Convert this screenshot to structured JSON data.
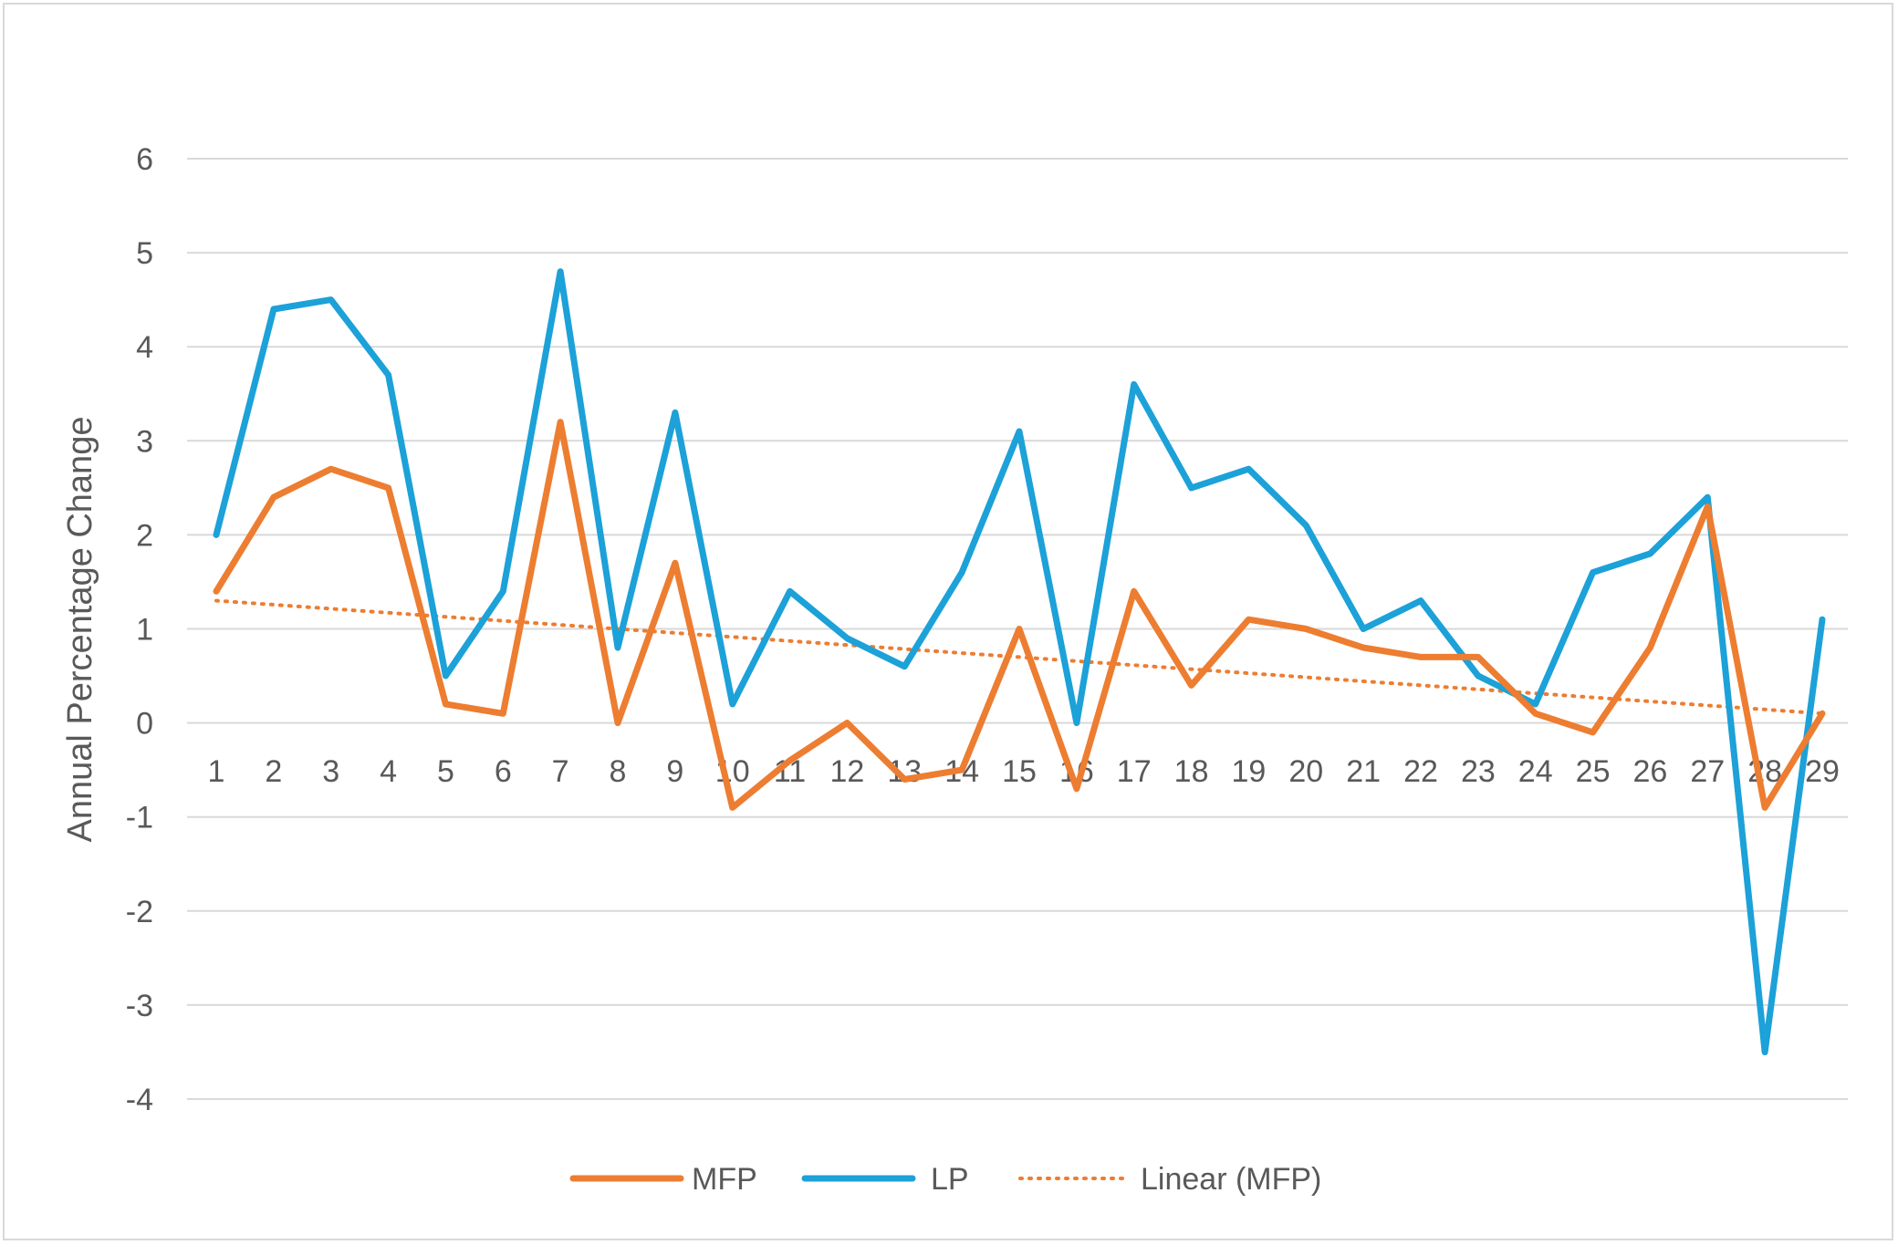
{
  "chart_data": {
    "type": "line",
    "title": "",
    "xlabel": "",
    "ylabel": "Annual Percentage Change",
    "ylim": [
      -4,
      6
    ],
    "yticks": [
      6,
      5,
      4,
      3,
      2,
      1,
      0,
      -1,
      -2,
      -3,
      -4
    ],
    "x": [
      1,
      2,
      3,
      4,
      5,
      6,
      7,
      8,
      9,
      10,
      11,
      12,
      13,
      14,
      15,
      16,
      17,
      18,
      19,
      20,
      21,
      22,
      23,
      24,
      25,
      26,
      27,
      28,
      29
    ],
    "grid": true,
    "legend_position": "bottom",
    "series": [
      {
        "name": "MFP",
        "color": "#ED7D31",
        "style": "solid",
        "values": [
          1.4,
          2.4,
          2.7,
          2.5,
          0.2,
          0.1,
          3.2,
          0.0,
          1.7,
          -0.9,
          -0.4,
          0.0,
          -0.6,
          -0.5,
          1.0,
          -0.7,
          1.4,
          0.4,
          1.1,
          1.0,
          0.8,
          0.7,
          0.7,
          0.1,
          -0.1,
          0.8,
          2.3,
          -0.9,
          0.1
        ]
      },
      {
        "name": "LP",
        "color": "#1CA1D8",
        "style": "solid",
        "values": [
          2.0,
          4.4,
          4.5,
          3.7,
          0.5,
          1.4,
          4.8,
          0.8,
          3.3,
          0.2,
          1.4,
          0.9,
          0.6,
          1.6,
          3.1,
          0.0,
          3.6,
          2.5,
          2.7,
          2.1,
          1.0,
          1.3,
          0.5,
          0.2,
          1.6,
          1.8,
          2.4,
          -3.5,
          1.1
        ]
      },
      {
        "name": "Linear (MFP)",
        "color": "#ED7D31",
        "style": "dotted",
        "trendline_of": "MFP",
        "start": 1.3,
        "end": 0.1
      }
    ]
  }
}
